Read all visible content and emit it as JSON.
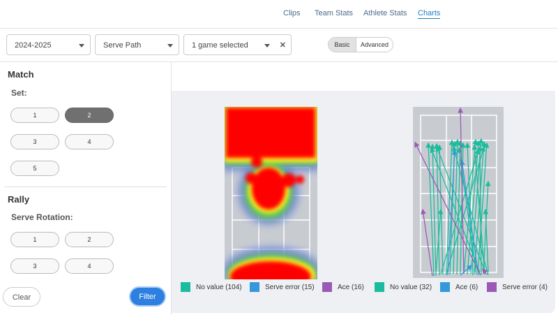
{
  "nav": {
    "tabs": [
      "Clips",
      "Team Stats",
      "Athlete Stats",
      "Charts"
    ],
    "active": "Charts"
  },
  "filters": {
    "season": "2024-2025",
    "chart": "Serve Path",
    "games": "1 game selected",
    "modes": [
      "Basic",
      "Advanced"
    ],
    "active_mode": "Basic"
  },
  "sidebar": {
    "match": {
      "title": "Match",
      "set_label": "Set:",
      "sets": [
        "1",
        "2",
        "3",
        "4",
        "5"
      ],
      "selected": "2"
    },
    "rally": {
      "title": "Rally",
      "rotation_label": "Serve Rotation:",
      "rotations": [
        "1",
        "2",
        "3",
        "4"
      ]
    },
    "clear": "Clear",
    "filter": "Filter"
  },
  "legend": [
    {
      "label": "No value (104)",
      "color": "#1abc9c"
    },
    {
      "label": "Serve error (15)",
      "color": "#3498db"
    },
    {
      "label": "Ace (16)",
      "color": "#9b59b6"
    },
    {
      "label": "No value (32)",
      "color": "#1abc9c"
    },
    {
      "label": "Ace (6)",
      "color": "#3498db"
    },
    {
      "label": "Serve error (4)",
      "color": "#9b59b6"
    }
  ]
}
